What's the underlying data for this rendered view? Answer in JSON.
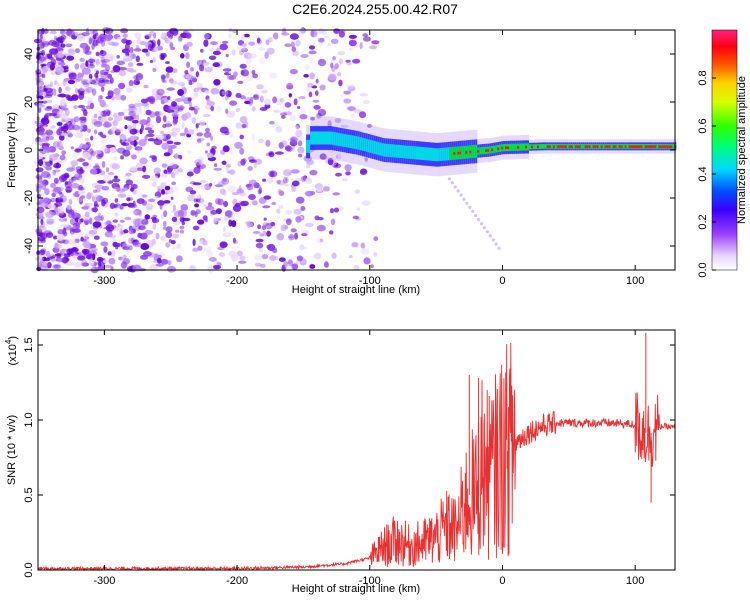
{
  "title": "C2E6.2024.255.00.42.R07",
  "colors": {
    "snr_line": "#e83030",
    "scatter_violet": "#6a00e0",
    "signal_green": "#00e040",
    "signal_cyan": "#00d8e8",
    "signal_red": "#ff1010"
  },
  "chart_data": [
    {
      "type": "heatmap",
      "xlabel": "Height of straight line (km)",
      "ylabel": "Frequency (Hz)",
      "xlim": [
        -350,
        130
      ],
      "ylim": [
        -50,
        50
      ],
      "xticks": [
        -300,
        -200,
        -100,
        0,
        100
      ],
      "xtick_labels": [
        "-300",
        "-200",
        "-100",
        "0",
        "100"
      ],
      "yticks": [
        -40,
        -20,
        0,
        20,
        40
      ],
      "ytick_labels": [
        "-40",
        "-20",
        "0",
        "20",
        "40"
      ],
      "colorbar": {
        "label": "Normalized spectral amplitude",
        "range": [
          0,
          1
        ],
        "ticks": [
          0.0,
          0.2,
          0.4,
          0.6,
          0.8
        ],
        "tick_labels": [
          "0.0",
          "0.2",
          "0.4",
          "0.6",
          "0.8"
        ]
      },
      "signal_band_center_hz": [
        [
          -145,
          5
        ],
        [
          -130,
          5
        ],
        [
          -110,
          3
        ],
        [
          -90,
          0
        ],
        [
          -70,
          -1
        ],
        [
          -50,
          -2
        ],
        [
          -30,
          -1
        ],
        [
          -10,
          0
        ],
        [
          0,
          1
        ],
        [
          30,
          1.5
        ],
        [
          60,
          1.5
        ],
        [
          100,
          1.5
        ],
        [
          130,
          1.5
        ]
      ],
      "noise_region_km": [
        -350,
        -110
      ]
    },
    {
      "type": "line",
      "xlabel": "Height of straight line (km)",
      "ylabel": "SNR (10 * v/v)",
      "y_multiplier_label": "(x10",
      "y_multiplier_exp": "4",
      "xlim": [
        -350,
        130
      ],
      "ylim": [
        0,
        1.6
      ],
      "xticks": [
        -300,
        -200,
        -100,
        0,
        100
      ],
      "xtick_labels": [
        "-300",
        "-200",
        "-100",
        "0",
        "100"
      ],
      "yticks": [
        0.0,
        0.5,
        1.0,
        1.5
      ],
      "ytick_labels": [
        "0.0",
        "0.5",
        "1.0",
        "1.5"
      ],
      "series": [
        {
          "x": [
            -350,
            -300,
            -200,
            -150,
            -120,
            -100,
            -90,
            -80,
            -70,
            -60,
            -50,
            -40,
            -35,
            -30,
            -25,
            -20,
            -15,
            -10,
            -5,
            0,
            10,
            20,
            30,
            40,
            60,
            80,
            100,
            110,
            120,
            130
          ],
          "y": [
            0.01,
            0.01,
            0.01,
            0.02,
            0.04,
            0.08,
            0.15,
            0.2,
            0.16,
            0.18,
            0.22,
            0.3,
            0.25,
            0.4,
            0.5,
            0.5,
            0.72,
            0.6,
            0.7,
            0.78,
            0.85,
            0.92,
            0.96,
            0.98,
            0.98,
            0.98,
            0.97,
            0.9,
            0.96,
            0.95
          ]
        }
      ],
      "spikes": [
        {
          "x": -25,
          "y": 1.3
        },
        {
          "x": -18,
          "y": 1.28
        },
        {
          "x": -10,
          "y": 1.16
        },
        {
          "x": 108,
          "y": 1.58
        },
        {
          "x": 112,
          "y": 0.45
        }
      ]
    }
  ]
}
